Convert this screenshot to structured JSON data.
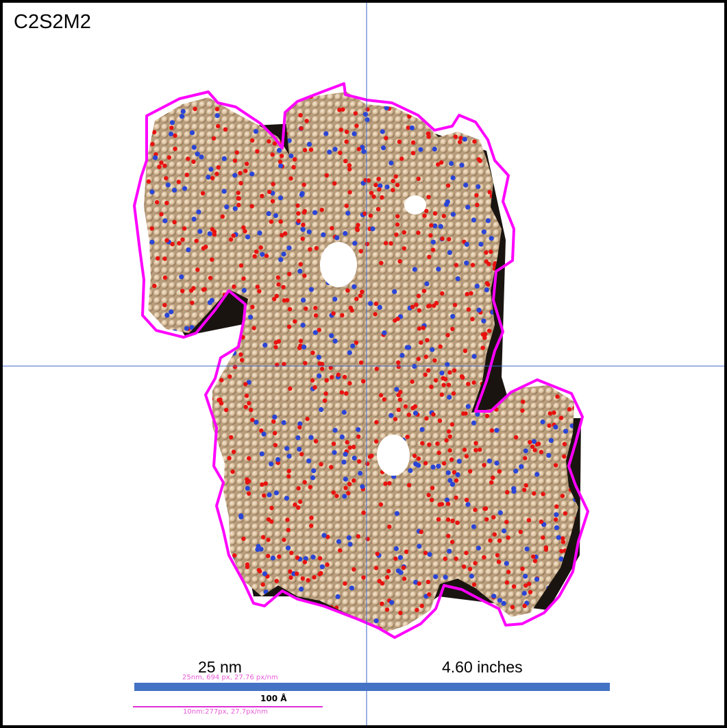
{
  "title": "C2S2M2",
  "scale_bars": {
    "nm_label": "25 nm",
    "inch_label": "4.60 inches",
    "nm_detail": "25nm, 694 px, 27.76 px/nm",
    "angstrom_label": "100 Å",
    "small_detail": "10nm:277px, 27.7px/nm"
  },
  "colors": {
    "outline": "#ff00ff",
    "protein": "#d9bd9a",
    "oxygen_atoms": "#e8120f",
    "nitrogen_atoms": "#2a45d6",
    "scale_bar_blue": "#4472c4",
    "crosshair": "#3b64c8"
  }
}
